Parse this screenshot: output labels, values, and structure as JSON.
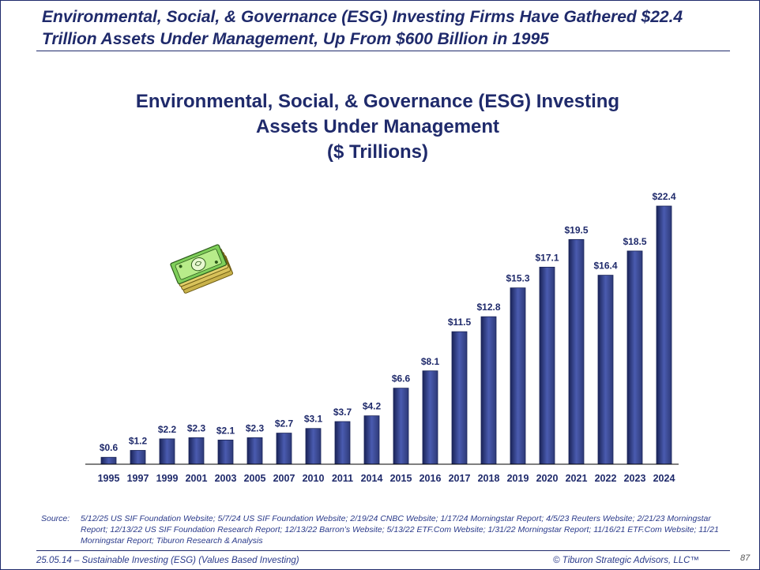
{
  "headline": "Environmental, Social, & Governance (ESG) Investing Firms Have Gathered $22.4 Trillion Assets Under Management, Up From $600 Billion in 1995",
  "chart_data": {
    "type": "bar",
    "title_lines": [
      "Environmental, Social, & Governance (ESG) Investing",
      "Assets Under Management",
      "($ Trillions)"
    ],
    "categories": [
      "1995",
      "1997",
      "1999",
      "2001",
      "2003",
      "2005",
      "2007",
      "2010",
      "2011",
      "2014",
      "2015",
      "2016",
      "2017",
      "2018",
      "2019",
      "2020",
      "2021",
      "2022",
      "2023",
      "2024"
    ],
    "values": [
      0.6,
      1.2,
      2.2,
      2.3,
      2.1,
      2.3,
      2.7,
      3.1,
      3.7,
      4.2,
      6.6,
      8.1,
      11.5,
      12.8,
      15.3,
      17.1,
      19.5,
      16.4,
      18.5,
      22.4
    ],
    "data_labels": [
      "$0.6",
      "$1.2",
      "$2.2",
      "$2.3",
      "$2.1",
      "$2.3",
      "$2.7",
      "$3.1",
      "$3.7",
      "$4.2",
      "$6.6",
      "$8.1",
      "$11.5",
      "$12.8",
      "$15.3",
      "$17.1",
      "$19.5",
      "$16.4",
      "$18.5",
      "$22.4"
    ],
    "ylim": [
      0,
      22.4
    ],
    "grid": false,
    "legend": "none",
    "bar_color_top": "#2e3a78",
    "bar_color_mid": "#4a5bb0",
    "bar_color_edge": "#1a2458"
  },
  "icon": "money-stack-icon",
  "source_label": "Source:",
  "source_text": "5/12/25 US SIF Foundation Website; 5/7/24 US SIF Foundation Website; 2/19/24 CNBC Website; 1/17/24 Morningstar Report; 4/5/23 Reuters Website; 2/21/23 Morningstar Report; 12/13/22 US SIF Foundation Research Report; 12/13/22 Barron’s Website; 5/13/22 ETF.Com Website; 1/31/22 Morningstar Report; 11/16/21 ETF.Com Website; 11/21 Morningstar Report; Tiburon Research & Analysis",
  "footer_left": "25.05.14 – Sustainable Investing (ESG) (Values Based Investing)",
  "footer_right": "© Tiburon Strategic Advisors, LLC™",
  "page_number": "87",
  "colors": {
    "navy": "#1f2a6b",
    "text_blue": "#2a3a8a"
  }
}
